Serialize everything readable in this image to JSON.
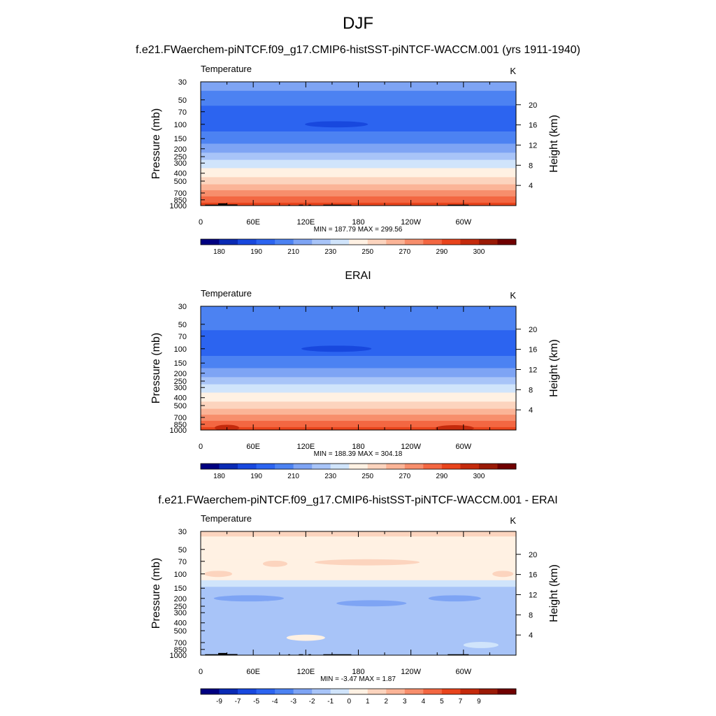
{
  "page_title": "DJF",
  "panel_titles": [
    "f.e21.FWaerchem-piNTCF.f09_g17.CMIP6-histSST-piNTCF-WACCM.001 (yrs 1911-1940)",
    "ERAI",
    "f.e21.FWaerchem-piNTCF.f09_g17.CMIP6-histSST-piNTCF-WACCM.001 - ERAI"
  ],
  "colors": {
    "abs_palette": [
      "#000080",
      "#0a2ab4",
      "#1848de",
      "#2c64f0",
      "#4c82f2",
      "#7ea4f4",
      "#a8c4f8",
      "#d0e4fb",
      "#fff1e3",
      "#fcd4be",
      "#fbb497",
      "#f78e6c",
      "#f36742",
      "#e8441c",
      "#c42a0c",
      "#9a1a06",
      "#700000"
    ],
    "diff_palette": [
      "#000080",
      "#0a2ab4",
      "#1848de",
      "#2c64f0",
      "#4c82f2",
      "#7ea4f4",
      "#a8c4f8",
      "#d0e4fb",
      "#fff1e3",
      "#fcd4be",
      "#fbb497",
      "#f78e6c",
      "#f36742",
      "#e8441c",
      "#c42a0c",
      "#9a1a06",
      "#700000"
    ],
    "topography": "#000000"
  },
  "chart_data": [
    {
      "type": "heatmap",
      "title": "Temperature",
      "units": "K",
      "xlabel": "",
      "ylabel": "Pressure (mb)",
      "ylabel_right": "Height (km)",
      "x_ticks": [
        "0",
        "60E",
        "120E",
        "180",
        "120W",
        "60W"
      ],
      "y_ticks": [
        "30",
        "50",
        "70",
        "100",
        "150",
        "200",
        "250",
        "300",
        "400",
        "500",
        "700",
        "850",
        "1000"
      ],
      "y2_ticks": [
        "20",
        "16",
        "12",
        "8",
        "4"
      ],
      "ylim": [
        1000,
        30
      ],
      "stats": {
        "min": "187.79",
        "max": "299.56"
      },
      "stats_label": "MIN = 187.79  MAX = 299.56",
      "colorbar_labels": [
        "180",
        "190",
        "210",
        "230",
        "250",
        "270",
        "290",
        "300"
      ],
      "levels": [
        {
          "p": 30,
          "bin": 5
        },
        {
          "p": 50,
          "bin": 4
        },
        {
          "p": 70,
          "bin": 3
        },
        {
          "p": 100,
          "bin": 3
        },
        {
          "p": 150,
          "bin": 4
        },
        {
          "p": 200,
          "bin": 5
        },
        {
          "p": 250,
          "bin": 6
        },
        {
          "p": 300,
          "bin": 7
        },
        {
          "p": 400,
          "bin": 8
        },
        {
          "p": 500,
          "bin": 9
        },
        {
          "p": 600,
          "bin": 10
        },
        {
          "p": 700,
          "bin": 11
        },
        {
          "p": 850,
          "bin": 12
        },
        {
          "p": 1000,
          "bin": 13
        }
      ],
      "features": [
        {
          "kind": "ellipse",
          "lon": 155,
          "p": 100,
          "bin": 2,
          "lon_width": 36
        }
      ],
      "topography": [
        {
          "lon_start": 5,
          "lon_end": 20,
          "p_top": 975
        },
        {
          "lon_start": 20,
          "lon_end": 30,
          "p_top": 940
        },
        {
          "lon_start": 30,
          "lon_end": 42,
          "p_top": 970
        },
        {
          "lon_start": 100,
          "lon_end": 102,
          "p_top": 975
        },
        {
          "lon_start": 112,
          "lon_end": 117,
          "p_top": 975
        },
        {
          "lon_start": 123,
          "lon_end": 126,
          "p_top": 975
        },
        {
          "lon_start": 140,
          "lon_end": 172,
          "p_top": 975
        },
        {
          "lon_start": 282,
          "lon_end": 306,
          "p_top": 975
        }
      ]
    },
    {
      "type": "heatmap",
      "title": "Temperature",
      "units": "K",
      "xlabel": "",
      "ylabel": "Pressure (mb)",
      "ylabel_right": "Height (km)",
      "x_ticks": [
        "0",
        "60E",
        "120E",
        "180",
        "120W",
        "60W"
      ],
      "y_ticks": [
        "30",
        "50",
        "70",
        "100",
        "150",
        "200",
        "250",
        "300",
        "400",
        "500",
        "700",
        "850",
        "1000"
      ],
      "y2_ticks": [
        "20",
        "16",
        "12",
        "8",
        "4"
      ],
      "ylim": [
        1000,
        30
      ],
      "stats": {
        "min": "188.39",
        "max": "304.18"
      },
      "stats_label": "MIN = 188.39  MAX = 304.18",
      "colorbar_labels": [
        "180",
        "190",
        "210",
        "230",
        "250",
        "270",
        "290",
        "300"
      ],
      "levels": [
        {
          "p": 30,
          "bin": 4
        },
        {
          "p": 50,
          "bin": 4
        },
        {
          "p": 70,
          "bin": 3
        },
        {
          "p": 100,
          "bin": 3
        },
        {
          "p": 150,
          "bin": 4
        },
        {
          "p": 200,
          "bin": 5
        },
        {
          "p": 250,
          "bin": 6
        },
        {
          "p": 300,
          "bin": 7
        },
        {
          "p": 400,
          "bin": 8
        },
        {
          "p": 500,
          "bin": 9
        },
        {
          "p": 600,
          "bin": 10
        },
        {
          "p": 700,
          "bin": 11
        },
        {
          "p": 850,
          "bin": 12
        },
        {
          "p": 1000,
          "bin": 13
        }
      ],
      "features": [
        {
          "kind": "ellipse",
          "lon": 155,
          "p": 100,
          "bin": 2,
          "lon_width": 40
        },
        {
          "kind": "ellipse",
          "lon": 30,
          "p": 940,
          "bin": 14,
          "lon_width": 14
        },
        {
          "kind": "ellipse",
          "lon": 290,
          "p": 950,
          "bin": 14,
          "lon_width": 22
        }
      ],
      "topography": []
    },
    {
      "type": "heatmap",
      "title": "Temperature",
      "units": "K",
      "xlabel": "",
      "ylabel": "Pressure (mb)",
      "ylabel_right": "Height (km)",
      "x_ticks": [
        "0",
        "60E",
        "120E",
        "180",
        "120W",
        "60W"
      ],
      "y_ticks": [
        "30",
        "50",
        "70",
        "100",
        "150",
        "200",
        "250",
        "300",
        "400",
        "500",
        "700",
        "850",
        "1000"
      ],
      "y2_ticks": [
        "20",
        "16",
        "12",
        "8",
        "4"
      ],
      "ylim": [
        1000,
        30
      ],
      "stats": {
        "min": "-3.47",
        "max": "1.87"
      },
      "stats_label": "MIN =  -3.47  MAX =   1.87",
      "colorbar_labels": [
        "-9",
        "-7",
        "-5",
        "-4",
        "-3",
        "-2",
        "-1",
        "0",
        "1",
        "2",
        "3",
        "4",
        "5",
        "7",
        "9"
      ],
      "levels": [
        {
          "p": 30,
          "bin": 9
        },
        {
          "p": 40,
          "bin": 8
        },
        {
          "p": 110,
          "bin": 8
        },
        {
          "p": 130,
          "bin": 7
        },
        {
          "p": 160,
          "bin": 6
        },
        {
          "p": 350,
          "bin": 6
        },
        {
          "p": 500,
          "bin": 6
        },
        {
          "p": 700,
          "bin": 6
        },
        {
          "p": 1000,
          "bin": 6
        }
      ],
      "features": [
        {
          "kind": "ellipse",
          "lon": 20,
          "p": 100,
          "bin": 9,
          "lon_width": 16
        },
        {
          "kind": "ellipse",
          "lon": 85,
          "p": 75,
          "bin": 9,
          "lon_width": 14
        },
        {
          "kind": "ellipse",
          "lon": 190,
          "p": 72,
          "bin": 9,
          "lon_width": 60
        },
        {
          "kind": "ellipse",
          "lon": 345,
          "p": 100,
          "bin": 9,
          "lon_width": 12
        },
        {
          "kind": "ellipse",
          "lon": 55,
          "p": 200,
          "bin": 5,
          "lon_width": 40
        },
        {
          "kind": "ellipse",
          "lon": 195,
          "p": 230,
          "bin": 5,
          "lon_width": 40
        },
        {
          "kind": "ellipse",
          "lon": 290,
          "p": 200,
          "bin": 5,
          "lon_width": 30
        },
        {
          "kind": "ellipse",
          "lon": 120,
          "p": 610,
          "bin": 8,
          "lon_width": 22
        },
        {
          "kind": "ellipse",
          "lon": 320,
          "p": 750,
          "bin": 7,
          "lon_width": 20
        }
      ],
      "topography": [
        {
          "lon_start": 5,
          "lon_end": 20,
          "p_top": 975
        },
        {
          "lon_start": 20,
          "lon_end": 30,
          "p_top": 940
        },
        {
          "lon_start": 30,
          "lon_end": 42,
          "p_top": 970
        },
        {
          "lon_start": 100,
          "lon_end": 102,
          "p_top": 975
        },
        {
          "lon_start": 112,
          "lon_end": 117,
          "p_top": 975
        },
        {
          "lon_start": 123,
          "lon_end": 126,
          "p_top": 975
        },
        {
          "lon_start": 140,
          "lon_end": 172,
          "p_top": 975
        },
        {
          "lon_start": 282,
          "lon_end": 306,
          "p_top": 975
        }
      ]
    }
  ]
}
